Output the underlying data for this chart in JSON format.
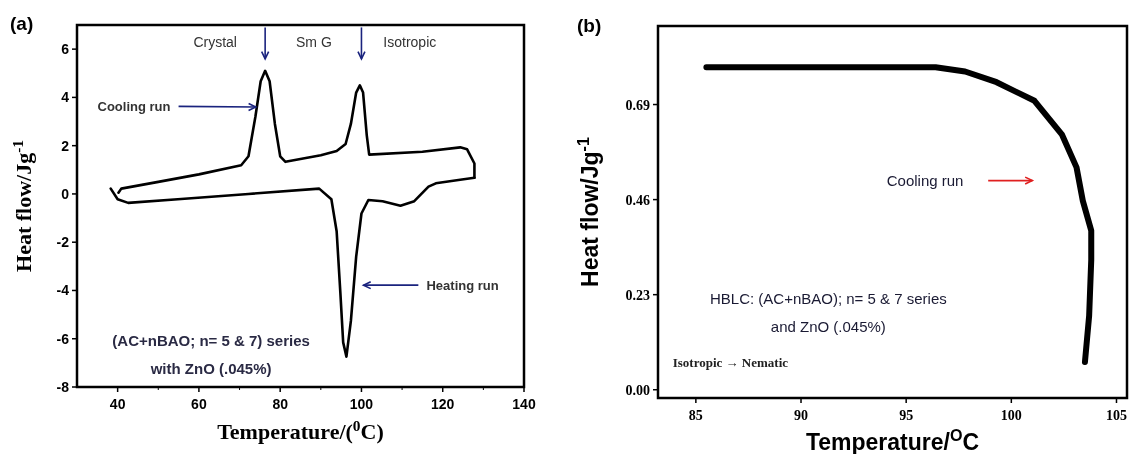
{
  "chart_data": [
    {
      "type": "line",
      "title": "(a)",
      "xlabel": "Temperature/($^{0}$C)",
      "ylabel": "Heat flow/Jg$^{-1}$",
      "xlim": [
        30,
        140
      ],
      "ylim": [
        -8,
        7
      ],
      "xticks": [
        40,
        60,
        80,
        100,
        120,
        140
      ],
      "yticks": [
        -8,
        -6,
        -4,
        -2,
        0,
        2,
        4,
        6
      ],
      "grid": false,
      "marker": "none",
      "line_style": "solid",
      "annotations": [
        "Crystal",
        "Sm G",
        "Isotropic",
        {
          "text": "Cooling run",
          "x": 74,
          "y": 3.6
        },
        "Heating run",
        "(AC+nBAO; n= 5 & 7) series",
        "with ZnO (.045%)"
      ],
      "series": [
        {
          "color": "#000000",
          "x": [
            40.2,
            40.9,
            50,
            60,
            70.4,
            72.2,
            73.9,
            75.2,
            76.3,
            77.4,
            78.7,
            80,
            81.3,
            90,
            93.9,
            96.1,
            97.4,
            98.7,
            99.6,
            100.4,
            101.3,
            101.9,
            115,
            124.3,
            126,
            127.8,
            127.8
          ],
          "values": [
            0.05,
            0.22,
            0.5,
            0.81,
            1.19,
            1.56,
            3.2,
            4.67,
            5.1,
            4.67,
            2.9,
            1.56,
            1.33,
            1.6,
            1.78,
            2.07,
            2.9,
            4.2,
            4.5,
            4.2,
            2.44,
            1.63,
            1.75,
            1.93,
            1.85,
            1.26,
            0.67
          ]
        },
        {
          "color": "#000000",
          "x": [
            127.8,
            124.3,
            118.3,
            116.5,
            113,
            109.6,
            105.2,
            101.7,
            100,
            98.7,
            97.4,
            96.3,
            95.5,
            94.8,
            93.9,
            92.6,
            89.6,
            72.2,
            54.8,
            42.6,
            40,
            38.3
          ],
          "values": [
            0.67,
            0.59,
            0.44,
            0.3,
            -0.3,
            -0.49,
            -0.3,
            -0.25,
            -0.81,
            -2.6,
            -5.26,
            -6.74,
            -6.15,
            -4.07,
            -1.56,
            -0.22,
            0.22,
            0,
            -0.22,
            -0.37,
            -0.22,
            0.22
          ]
        }
      ]
    },
    {
      "type": "line",
      "title": "(b)",
      "xlabel": "Temperature/$^{O}$C",
      "ylabel": "Heat flow/Jg$^{-1}$",
      "xlim": [
        83.2,
        105.5
      ],
      "ylim": [
        -0.02,
        0.88
      ],
      "xticks": [
        85,
        90,
        95,
        100,
        105
      ],
      "yticks": [
        {
          "value": 0,
          "label": "0.00"
        },
        {
          "value": 0.23,
          "label": "0.23"
        },
        {
          "value": 0.46,
          "label": "0.46"
        },
        {
          "value": 0.69,
          "label": "0.69"
        }
      ],
      "grid": false,
      "marker": "none",
      "line_style": "solid",
      "annotations": [
        "Cooling run",
        "HBLC: (AC+nBAO); n= 5 & 7 series",
        "and ZnO (.045%)",
        "Isotropic → Nematic"
      ],
      "series": [
        {
          "color": "#000000",
          "x": [
            85.5,
            90,
            96.4,
            97.8,
            99.3,
            101.1,
            102.4,
            103.1,
            103.4,
            103.8,
            103.8,
            103.7,
            103.5
          ],
          "values": [
            0.78,
            0.78,
            0.78,
            0.77,
            0.744,
            0.699,
            0.618,
            0.538,
            0.457,
            0.385,
            0.314,
            0.179,
            0.067
          ]
        }
      ]
    }
  ]
}
